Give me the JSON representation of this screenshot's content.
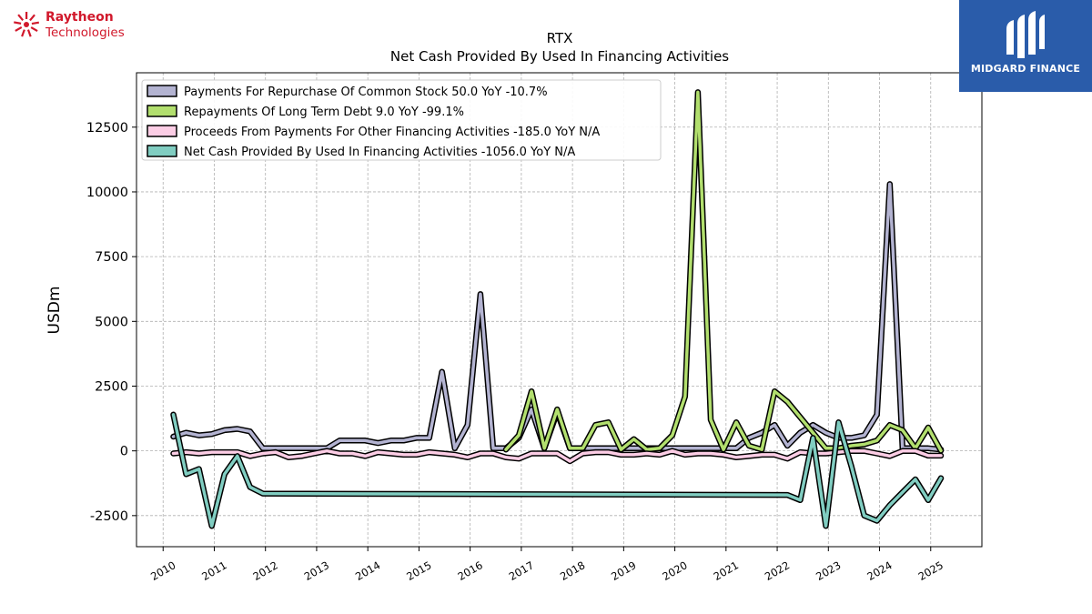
{
  "logos": {
    "left_line1": "Raytheon",
    "left_line2": "Technologies",
    "right_name": "MIDGARD FINANCE",
    "left_color": "#d1182b",
    "right_bg": "#2a5caa"
  },
  "chart_data": {
    "type": "line",
    "title": "RTX",
    "subtitle": "Net Cash Provided By Used In Financing Activities",
    "ylabel": "USDm",
    "xlabel": "",
    "xlim": [
      2009.48,
      2026.0
    ],
    "ylim": [
      -3700,
      14600
    ],
    "yticks": [
      -2500,
      0,
      2500,
      5000,
      7500,
      10000,
      12500
    ],
    "xticks": [
      2010,
      2011,
      2012,
      2013,
      2014,
      2015,
      2016,
      2017,
      2018,
      2019,
      2020,
      2021,
      2022,
      2023,
      2024,
      2025
    ],
    "grid": true,
    "legend_position": "top-left",
    "series": [
      {
        "name": "Payments For Repurchase Of Common Stock  50.0 YoY -10.7%",
        "color": "#b3b3d1",
        "x": [
          2010.2,
          2010.45,
          2010.7,
          2010.95,
          2011.2,
          2011.45,
          2011.7,
          2011.95,
          2013.2,
          2013.45,
          2013.7,
          2013.95,
          2014.2,
          2014.45,
          2014.7,
          2014.95,
          2015.2,
          2015.45,
          2015.7,
          2015.95,
          2016.2,
          2016.45,
          2016.7,
          2016.95,
          2017.2,
          2017.45,
          2017.7,
          2017.95,
          2018.2,
          2018.45,
          2018.7,
          2018.95,
          2019.2,
          2019.45,
          2019.7,
          2019.95,
          2020.2,
          2020.45,
          2020.7,
          2020.95,
          2021.2,
          2021.45,
          2021.7,
          2021.95,
          2022.2,
          2022.45,
          2022.7,
          2022.95,
          2023.2,
          2023.45,
          2023.7,
          2023.95,
          2024.2,
          2024.45,
          2024.7,
          2024.95,
          2025.2
        ],
        "values": [
          550,
          700,
          600,
          650,
          800,
          850,
          750,
          100,
          100,
          400,
          400,
          400,
          300,
          400,
          400,
          500,
          500,
          3050,
          100,
          1000,
          6050,
          100,
          100,
          500,
          1600,
          100,
          1500,
          100,
          100,
          100,
          100,
          100,
          100,
          100,
          100,
          100,
          100,
          100,
          100,
          100,
          100,
          500,
          700,
          1000,
          200,
          700,
          1000,
          700,
          500,
          500,
          600,
          1400,
          10300,
          100,
          100,
          100,
          50
        ]
      },
      {
        "name": "Repayments Of Long Term Debt  9.0 YoY -99.1%",
        "color": "#b2df6e",
        "x": [
          2016.7,
          2016.95,
          2017.2,
          2017.45,
          2017.7,
          2017.95,
          2018.2,
          2018.45,
          2018.7,
          2018.95,
          2019.2,
          2019.45,
          2019.7,
          2019.95,
          2020.2,
          2020.45,
          2020.7,
          2020.95,
          2021.2,
          2021.45,
          2021.7,
          2021.95,
          2022.2,
          2022.45,
          2022.7,
          2022.95,
          2023.2,
          2023.45,
          2023.7,
          2023.95,
          2024.2,
          2024.45,
          2024.7,
          2024.95,
          2025.2
        ],
        "values": [
          50,
          600,
          2300,
          100,
          1600,
          100,
          100,
          1000,
          1100,
          50,
          450,
          50,
          100,
          600,
          2100,
          13850,
          1200,
          50,
          1100,
          200,
          50,
          2300,
          1900,
          1300,
          700,
          100,
          100,
          200,
          250,
          400,
          1000,
          800,
          100,
          900,
          9
        ]
      },
      {
        "name": "Proceeds From Payments For Other Financing Activities  -185.0 YoY N/A",
        "color": "#fccde5",
        "x": [
          2010.2,
          2010.45,
          2010.7,
          2010.95,
          2011.2,
          2011.45,
          2011.7,
          2011.95,
          2012.2,
          2012.45,
          2012.7,
          2012.95,
          2013.2,
          2013.45,
          2013.7,
          2013.95,
          2014.2,
          2014.45,
          2014.7,
          2014.95,
          2015.2,
          2015.45,
          2015.7,
          2015.95,
          2016.2,
          2016.45,
          2016.7,
          2016.95,
          2017.2,
          2017.45,
          2017.7,
          2017.95,
          2018.2,
          2018.45,
          2018.7,
          2018.95,
          2019.2,
          2019.45,
          2019.7,
          2019.95,
          2020.2,
          2020.45,
          2020.7,
          2020.95,
          2021.2,
          2021.45,
          2021.7,
          2021.95,
          2022.2,
          2022.45,
          2022.7,
          2022.95,
          2023.2,
          2023.45,
          2023.7,
          2023.95,
          2024.2,
          2024.45,
          2024.7,
          2024.95,
          2025.2
        ],
        "values": [
          -100,
          -50,
          -100,
          -50,
          -50,
          -50,
          -200,
          -100,
          -50,
          -250,
          -200,
          -100,
          0,
          -100,
          -100,
          -200,
          -50,
          -100,
          -150,
          -150,
          -50,
          -100,
          -150,
          -250,
          -100,
          -100,
          -250,
          -300,
          -100,
          -100,
          -100,
          -400,
          -100,
          -50,
          -50,
          -150,
          -150,
          -100,
          -150,
          0,
          -150,
          -100,
          -100,
          -150,
          -250,
          -200,
          -150,
          -150,
          -300,
          -50,
          -100,
          -100,
          -50,
          0,
          0,
          -100,
          -200,
          0,
          0,
          -185,
          -185
        ]
      },
      {
        "name": "Net Cash Provided By Used In Financing Activities  -1056.0 YoY N/A",
        "color": "#80cdc1",
        "x": [
          2010.2,
          2010.45,
          2010.7,
          2010.95,
          2011.2,
          2011.45,
          2011.7,
          2011.95,
          2022.2,
          2022.45,
          2022.7,
          2022.95,
          2023.2,
          2023.45,
          2023.7,
          2023.95,
          2024.2,
          2024.45,
          2024.7,
          2024.95,
          2025.2
        ],
        "values": [
          1400,
          -900,
          -700,
          -2900,
          -900,
          -200,
          -1400,
          -1650,
          -1700,
          -1900,
          500,
          -2900,
          1100,
          -600,
          -2500,
          -2700,
          -2100,
          -1600,
          -1100,
          -1900,
          -1056
        ]
      }
    ]
  }
}
